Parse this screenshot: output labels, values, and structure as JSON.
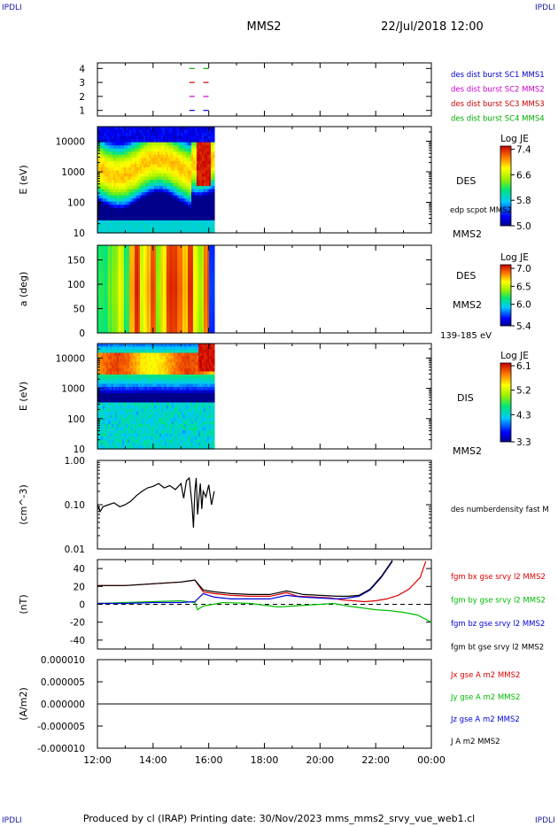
{
  "header": {
    "corner_label": "IPDLI",
    "spacecraft": "MMS2",
    "datetime": "22/Jul/2018 12:00"
  },
  "footer": {
    "text": "Produced by cl (IRAP)   Printing date: 30/Nov/2023   mms_mms2_srvy_vue_web1.cl"
  },
  "x_axis": {
    "range_hours": [
      12,
      24
    ],
    "tick_labels": [
      "12:00",
      "14:00",
      "16:00",
      "18:00",
      "20:00",
      "22:00",
      "00:00"
    ],
    "tick_hours": [
      12,
      14,
      16,
      18,
      20,
      22,
      24
    ]
  },
  "colors": {
    "mms1": "#0000cc",
    "mms2": "#cc00cc",
    "mms3": "#cc0000",
    "mms4": "#00aa00",
    "bx": "#dd0000",
    "by": "#00bb00",
    "bz": "#0000dd",
    "bt": "#000000"
  },
  "chart_data": [
    {
      "id": "burst",
      "type": "scatter",
      "y_ticks": [
        "1",
        "2",
        "3",
        "4"
      ],
      "y_tick_values": [
        1,
        2,
        3,
        4
      ],
      "ylim": [
        0.6,
        4.4
      ],
      "series": [
        {
          "name": "des dist burst SC1 MMS1",
          "level": 1,
          "x": [
            15.4,
            15.9
          ],
          "color_key": "mms1"
        },
        {
          "name": "des dist burst SC2 MMS2",
          "level": 2,
          "x": [
            15.4,
            15.9
          ],
          "color_key": "mms2"
        },
        {
          "name": "des dist burst SC3 MMS3",
          "level": 3,
          "x": [
            15.4,
            15.9
          ],
          "color_key": "mms3"
        },
        {
          "name": "des dist burst SC4 MMS4",
          "level": 4,
          "x": [
            15.4,
            15.9
          ],
          "color_key": "mms4"
        }
      ]
    },
    {
      "id": "des_energy",
      "type": "heatmap",
      "ylabel": "E (eV)",
      "y_scale": "log",
      "ylim": [
        10,
        30000
      ],
      "y_ticks": [
        "10",
        "100",
        "1000",
        "10000"
      ],
      "y_tick_values": [
        10,
        100,
        1000,
        10000
      ],
      "x_end_hours": 16.2,
      "right_labels": [
        "DES",
        "edp scpot MMS2",
        "MMS2"
      ],
      "colorbar": {
        "title": "Log JE",
        "min": 5.0,
        "max": 7.5,
        "tick_labels": [
          "7.4",
          "6.6",
          "5.8",
          "5.0"
        ],
        "tick_values": [
          7.4,
          6.6,
          5.8,
          5.0
        ]
      }
    },
    {
      "id": "des_pitch",
      "type": "heatmap",
      "ylabel": "a (deg)",
      "ylim": [
        0,
        180
      ],
      "y_ticks": [
        "0",
        "50",
        "100",
        "150"
      ],
      "y_tick_values": [
        0,
        50,
        100,
        150
      ],
      "x_end_hours": 16.2,
      "right_labels": [
        "DES",
        "MMS2",
        "139-185 eV"
      ],
      "colorbar": {
        "title": "Log JE",
        "min": 5.4,
        "max": 7.1,
        "tick_labels": [
          "7.0",
          "6.5",
          "6.0",
          "5.4"
        ],
        "tick_values": [
          7.0,
          6.5,
          6.0,
          5.4
        ]
      }
    },
    {
      "id": "dis_energy",
      "type": "heatmap",
      "ylabel": "E (eV)",
      "y_scale": "log",
      "ylim": [
        10,
        30000
      ],
      "y_ticks": [
        "10",
        "100",
        "1000",
        "10000"
      ],
      "y_tick_values": [
        10,
        100,
        1000,
        10000
      ],
      "x_end_hours": 16.2,
      "right_labels": [
        "DIS",
        "MMS2"
      ],
      "colorbar": {
        "title": "Log JE",
        "min": 3.3,
        "max": 6.2,
        "tick_labels": [
          "6.1",
          "5.2",
          "4.3",
          "3.3"
        ],
        "tick_values": [
          6.1,
          5.2,
          4.3,
          3.3
        ]
      }
    },
    {
      "id": "density",
      "type": "line",
      "ylabel": "(cm^-3)",
      "y_scale": "log",
      "ylim": [
        0.01,
        1.0
      ],
      "y_ticks": [
        "0.01",
        "0.10",
        "1.00"
      ],
      "y_tick_values": [
        0.01,
        0.1,
        1.0
      ],
      "series": [
        {
          "name": "des numberdensity fast M",
          "color_key": "bt",
          "x": [
            12.0,
            12.1,
            12.2,
            12.4,
            12.6,
            12.8,
            13.0,
            13.2,
            13.4,
            13.6,
            13.8,
            14.0,
            14.2,
            14.4,
            14.6,
            14.8,
            15.0,
            15.1,
            15.2,
            15.3,
            15.4,
            15.45,
            15.5,
            15.55,
            15.6,
            15.65,
            15.7,
            15.75,
            15.8,
            15.9,
            16.0,
            16.1,
            16.2
          ],
          "y": [
            0.1,
            0.07,
            0.09,
            0.1,
            0.11,
            0.09,
            0.1,
            0.12,
            0.16,
            0.2,
            0.24,
            0.26,
            0.3,
            0.24,
            0.27,
            0.22,
            0.3,
            0.14,
            0.35,
            0.4,
            0.1,
            0.03,
            0.2,
            0.4,
            0.06,
            0.15,
            0.3,
            0.08,
            0.2,
            0.15,
            0.28,
            0.1,
            0.2
          ]
        }
      ]
    },
    {
      "id": "bfield",
      "type": "line",
      "ylabel": "(nT)",
      "ylim": [
        -50,
        50
      ],
      "y_ticks": [
        "-40",
        "-20",
        "0",
        "20",
        "40"
      ],
      "y_tick_values": [
        -40,
        -20,
        0,
        20,
        40
      ],
      "series": [
        {
          "name": "fgm bx gse srvy l2 MMS2",
          "color_key": "bx",
          "x": [
            12,
            13,
            14,
            15,
            15.5,
            15.8,
            16.2,
            16.8,
            17.5,
            18.2,
            18.8,
            19.2,
            19.8,
            20.4,
            20.8,
            21.2,
            21.6,
            22.0,
            22.4,
            22.8,
            23.2,
            23.6,
            23.8
          ],
          "y": [
            21,
            21,
            23,
            25,
            27,
            14,
            12,
            10,
            9,
            9,
            13,
            9,
            8,
            7,
            5,
            4,
            3,
            4,
            6,
            10,
            17,
            30,
            48
          ]
        },
        {
          "name": "fgm by gse srvy l2 MMS2",
          "color_key": "by",
          "x": [
            12,
            13,
            14,
            15,
            15.5,
            15.6,
            15.8,
            16.5,
            17.5,
            18.5,
            19.5,
            20.5,
            21.0,
            21.5,
            22.0,
            22.5,
            23.0,
            23.5,
            24.0
          ],
          "y": [
            1,
            2,
            3,
            4,
            2,
            -6,
            -2,
            2,
            1,
            -3,
            -1,
            1,
            -2,
            -4,
            -6,
            -7,
            -9,
            -12,
            -20
          ]
        },
        {
          "name": "fgm bz gse srvy l2 MMS2",
          "color_key": "bz",
          "x": [
            12,
            13,
            14,
            15,
            15.5,
            15.8,
            16.2,
            16.8,
            17.5,
            18.2,
            18.8,
            19.4,
            20.0,
            20.6,
            21.0,
            21.4,
            21.8,
            22.2,
            22.6
          ],
          "y": [
            1,
            1,
            2,
            2,
            3,
            12,
            8,
            6,
            6,
            6,
            10,
            8,
            7,
            6,
            7,
            9,
            16,
            30,
            48
          ]
        },
        {
          "name": "fgm bt gse srvy l2 MMS2",
          "color_key": "bt",
          "x": [
            12,
            13,
            14,
            15,
            15.5,
            15.8,
            16.2,
            16.8,
            17.5,
            18.2,
            18.8,
            19.4,
            20.0,
            20.6,
            21.0,
            21.4,
            21.8,
            22.2,
            22.6
          ],
          "y": [
            21,
            21,
            23,
            25,
            27,
            16,
            14,
            12,
            11,
            11,
            15,
            11,
            10,
            9,
            9,
            10,
            17,
            31,
            49
          ]
        }
      ]
    },
    {
      "id": "current",
      "type": "line",
      "ylabel": "(A/m2)",
      "ylim": [
        -1e-05,
        1e-05
      ],
      "y_ticks": [
        "-0.000010",
        "-0.000005",
        "0.000000",
        "0.000005",
        "0.000010"
      ],
      "y_tick_values": [
        -1e-05,
        -5e-06,
        0,
        5e-06,
        1e-05
      ],
      "series": [
        {
          "name": "Jx gse A m2 MMS2",
          "color_key": "bx",
          "x": [
            12,
            24
          ],
          "y": [
            0,
            0
          ]
        },
        {
          "name": "Jy gse A m2 MMS2",
          "color_key": "by",
          "x": [
            12,
            24
          ],
          "y": [
            0,
            0
          ]
        },
        {
          "name": "Jz gse A m2 MMS2",
          "color_key": "bz",
          "x": [
            12,
            24
          ],
          "y": [
            0,
            0
          ]
        },
        {
          "name": "J A m2 MMS2",
          "color_key": "bt",
          "x": [
            12,
            24
          ],
          "y": [
            0,
            0
          ]
        }
      ]
    }
  ]
}
